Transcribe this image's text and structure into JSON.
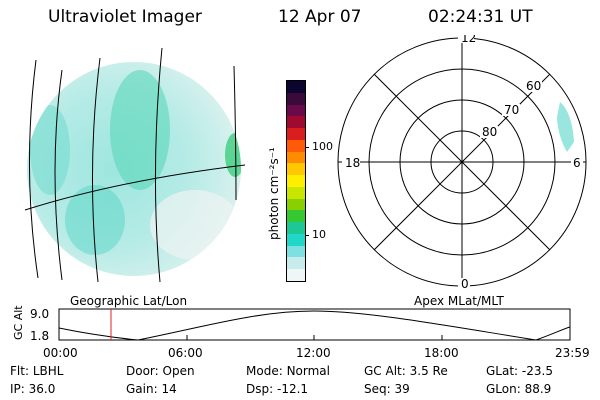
{
  "header": {
    "instrument": "Ultraviolet Imager",
    "date": "12 Apr 07",
    "time": "02:24:31 UT"
  },
  "colorbar": {
    "unit_label": "photon cm⁻²s⁻¹",
    "ticks": [
      "100",
      "10"
    ],
    "colors": [
      "#0b0530",
      "#3a0a3a",
      "#6b0a4a",
      "#a00a30",
      "#d81e1e",
      "#ff5a0a",
      "#ff8c00",
      "#ffc800",
      "#ffee00",
      "#c8e600",
      "#8ad000",
      "#36c832",
      "#1ec896",
      "#21d8c8",
      "#7ee0e0",
      "#c8ecec",
      "#eef6f6"
    ]
  },
  "left_panel": {
    "caption": "Geographic Lat/Lon"
  },
  "right_panel": {
    "caption": "Apex MLat/MLT",
    "lat_labels": [
      "60",
      "70",
      "80"
    ],
    "mlt_labels": {
      "top": "12",
      "bottom": "0",
      "left": "18",
      "right": "6"
    }
  },
  "altitude_plot": {
    "ylabel": "GC Alt",
    "yticks": [
      "9.0",
      "1.8"
    ],
    "xticks": [
      "00:00",
      "06:00",
      "12:00",
      "18:00",
      "23:59"
    ]
  },
  "status": {
    "row1": [
      {
        "key": "Flt:",
        "value": "LBHL"
      },
      {
        "key": "Door:",
        "value": "Open"
      },
      {
        "key": "Mode:",
        "value": "Normal"
      },
      {
        "key": "GC Alt:",
        "value": "3.5 Re"
      },
      {
        "key": "GLat:",
        "value": "-23.5"
      }
    ],
    "row2": [
      {
        "key": "IP:",
        "value": "36.0"
      },
      {
        "key": "Gain:",
        "value": "14"
      },
      {
        "key": "Dsp:",
        "value": "-12.1"
      },
      {
        "key": "Seq:",
        "value": "39"
      },
      {
        "key": "GLon:",
        "value": "88.9"
      }
    ]
  }
}
